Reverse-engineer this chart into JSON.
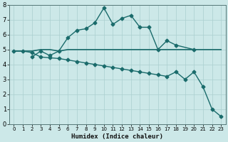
{
  "xlabel": "Humidex (Indice chaleur)",
  "background_color": "#cce8e8",
  "grid_color": "#aacfcf",
  "line_color": "#1a6b6b",
  "xlim": [
    -0.5,
    23.5
  ],
  "ylim": [
    0,
    8
  ],
  "xticks": [
    0,
    1,
    2,
    3,
    4,
    5,
    6,
    7,
    8,
    9,
    10,
    11,
    12,
    13,
    14,
    15,
    16,
    17,
    18,
    19,
    20,
    21,
    22,
    23
  ],
  "yticks": [
    0,
    1,
    2,
    3,
    4,
    5,
    6,
    7,
    8
  ],
  "line1_x": [
    0,
    1,
    2,
    3,
    4,
    5,
    6,
    7,
    8,
    9,
    10,
    11,
    12,
    13,
    14,
    15,
    16,
    17,
    18,
    19,
    20,
    21,
    22,
    23
  ],
  "line1_y": [
    4.9,
    4.9,
    4.9,
    5.0,
    5.0,
    4.9,
    5.0,
    5.0,
    5.0,
    5.0,
    5.0,
    5.0,
    5.0,
    5.0,
    5.0,
    5.0,
    5.0,
    5.0,
    5.0,
    5.0,
    5.0,
    5.0,
    5.0,
    5.0
  ],
  "line2_x": [
    2,
    3,
    4,
    5,
    6,
    7,
    8,
    9,
    10,
    11,
    12,
    13,
    14,
    15,
    16,
    17,
    18,
    20
  ],
  "line2_y": [
    4.5,
    4.9,
    4.6,
    4.9,
    5.8,
    6.3,
    6.4,
    6.8,
    7.8,
    6.7,
    7.1,
    7.3,
    6.5,
    6.5,
    5.0,
    5.6,
    5.3,
    5.0
  ],
  "line3_x": [
    0,
    1,
    2,
    3,
    4,
    5,
    6,
    7,
    8,
    9,
    10,
    11,
    12,
    13,
    14,
    15,
    16,
    17,
    18,
    19,
    20,
    21,
    22,
    23
  ],
  "line3_y": [
    4.9,
    4.9,
    4.8,
    4.5,
    4.45,
    4.4,
    4.3,
    4.2,
    4.1,
    4.0,
    3.9,
    3.8,
    3.7,
    3.6,
    3.5,
    3.4,
    3.3,
    3.2,
    3.5,
    3.0,
    3.5,
    2.5,
    1.0,
    0.5
  ]
}
